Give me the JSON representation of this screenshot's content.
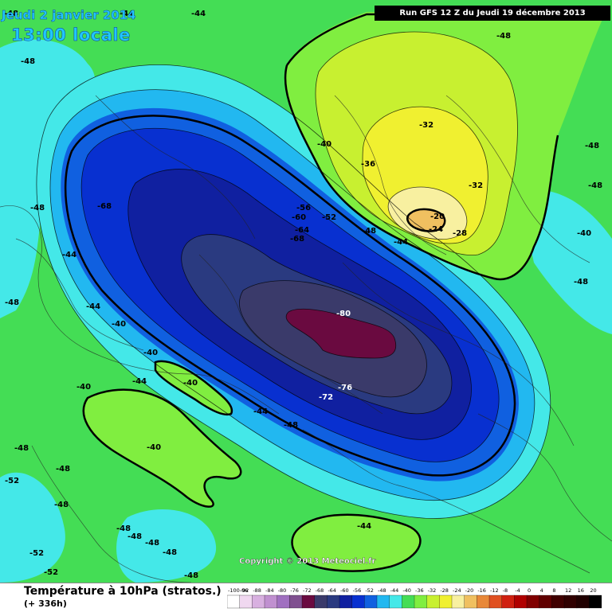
{
  "header": {
    "date_line": "Jeudi 2 janvier 2014",
    "time_line": "13:00 locale",
    "run_info": "Run GFS 12 Z du Jeudi 19 décembre 2013"
  },
  "footer": {
    "variable_title": "Température à 10hPa (stratos.)",
    "forecast_hour": "(+ 336h)",
    "copyright": "Copyright © 2013 Meteociel.fr"
  },
  "colors": {
    "ocean_green": "#44dd55",
    "cyan": "#44e8e8",
    "lightblue": "#22b8f0",
    "blue": "#1060e0",
    "royal": "#0830d0",
    "navy": "#1020a0",
    "slate": "#2a3a80",
    "deep": "#3a3a6a",
    "maroon": "#6a0a40",
    "yellowgreen": "#c8f030",
    "yellow": "#f0f030",
    "paleyellow": "#f8f0a0",
    "warm": "#f0c060"
  },
  "legend": {
    "labels": [
      "-100-96",
      "-92",
      "-88",
      "-84",
      "-80",
      "-76",
      "-72",
      "-68",
      "-64",
      "-60",
      "-56",
      "-52",
      "-48",
      "-44",
      "-40",
      "-36",
      "-32",
      "-28",
      "-24",
      "-20",
      "-16",
      "-12",
      "-8",
      "-4",
      "0",
      "4",
      "8",
      "12",
      "16",
      "20"
    ],
    "colors": [
      "#ffffff",
      "#f0d8f0",
      "#d8b0e0",
      "#c090d0",
      "#a070c0",
      "#805090",
      "#6a0a40",
      "#3a3a6a",
      "#2a3a80",
      "#1020a0",
      "#0830d0",
      "#1060e0",
      "#22b8f0",
      "#44e8e8",
      "#44dd55",
      "#80ee40",
      "#c8f030",
      "#f0f030",
      "#f8f0a0",
      "#f0c060",
      "#e88838",
      "#e05020",
      "#d02010",
      "#b00000",
      "#800000",
      "#600000",
      "#400000",
      "#300000",
      "#200000",
      "#000000"
    ]
  },
  "map_labels": [
    {
      "id": "l1",
      "text": "-48"
    },
    {
      "id": "l2",
      "text": "-44"
    },
    {
      "id": "l3",
      "text": "-48"
    },
    {
      "id": "l4",
      "text": "-44"
    },
    {
      "id": "l5",
      "text": "-48"
    },
    {
      "id": "l6",
      "text": "-68"
    },
    {
      "id": "l7",
      "text": "-56"
    },
    {
      "id": "l8",
      "text": "-60"
    },
    {
      "id": "l9",
      "text": "-52"
    },
    {
      "id": "l10",
      "text": "-64"
    },
    {
      "id": "l11",
      "text": "-68"
    },
    {
      "id": "l12",
      "text": "-48"
    },
    {
      "id": "l13",
      "text": "-44"
    },
    {
      "id": "l14",
      "text": "-40"
    },
    {
      "id": "l15",
      "text": "-36"
    },
    {
      "id": "l16",
      "text": "-32"
    },
    {
      "id": "l17",
      "text": "-32"
    },
    {
      "id": "l18",
      "text": "-20"
    },
    {
      "id": "l19",
      "text": "-24"
    },
    {
      "id": "l20",
      "text": "-28"
    },
    {
      "id": "l21",
      "text": "-80"
    },
    {
      "id": "l22",
      "text": "-76"
    },
    {
      "id": "l23",
      "text": "-72"
    },
    {
      "id": "l24",
      "text": "-44"
    },
    {
      "id": "l25",
      "text": "-40"
    },
    {
      "id": "l26",
      "text": "-40"
    },
    {
      "id": "l27",
      "text": "-44"
    },
    {
      "id": "l28",
      "text": "-40"
    },
    {
      "id": "l29",
      "text": "-40"
    },
    {
      "id": "l30",
      "text": "-44"
    },
    {
      "id": "l31",
      "text": "-48"
    },
    {
      "id": "l32",
      "text": "-40"
    },
    {
      "id": "l33",
      "text": "-48"
    },
    {
      "id": "l34",
      "text": "-52"
    },
    {
      "id": "l35",
      "text": "-48"
    },
    {
      "id": "l36",
      "text": "-48"
    },
    {
      "id": "l37",
      "text": "-48"
    },
    {
      "id": "l38",
      "text": "-52"
    },
    {
      "id": "l39",
      "text": "-52"
    },
    {
      "id": "l40",
      "text": "-48"
    },
    {
      "id": "l41",
      "text": "-48"
    },
    {
      "id": "l42",
      "text": "-48"
    },
    {
      "id": "l43",
      "text": "-44"
    },
    {
      "id": "l44",
      "text": "-48"
    },
    {
      "id": "l45",
      "text": "-48"
    },
    {
      "id": "l46",
      "text": "-48"
    },
    {
      "id": "l47",
      "text": "-40"
    },
    {
      "id": "l48",
      "text": "-44"
    },
    {
      "id": "l49",
      "text": "-48"
    },
    {
      "id": "l50",
      "text": "-48"
    },
    {
      "id": "l51",
      "text": "-48"
    }
  ]
}
